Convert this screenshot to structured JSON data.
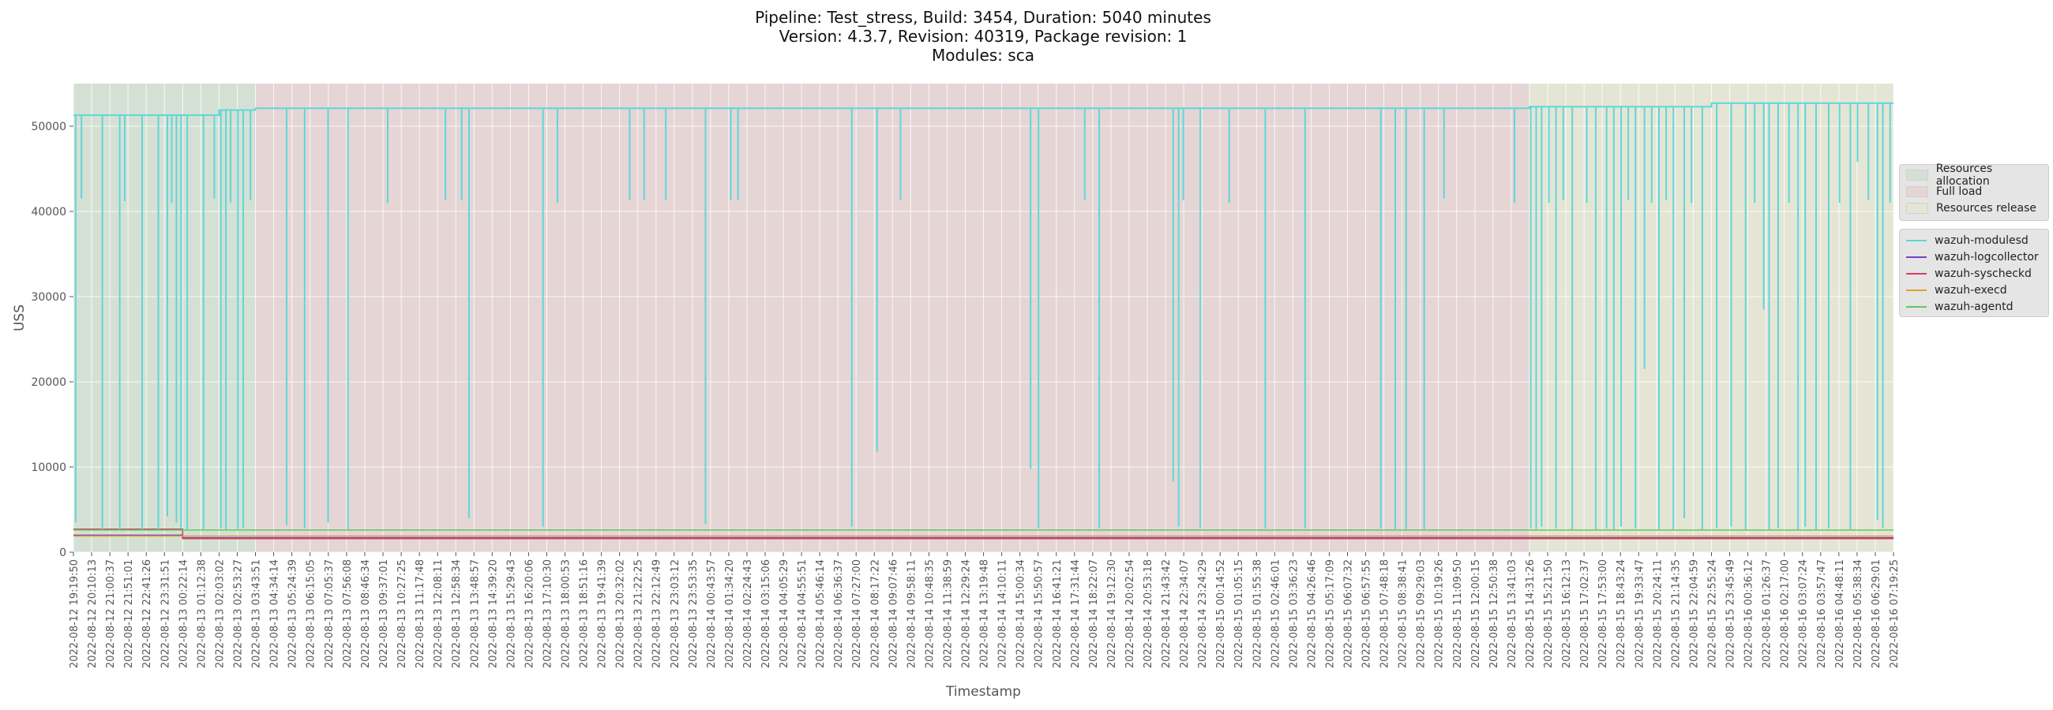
{
  "chart_data": {
    "type": "line",
    "title": [
      "Pipeline: Test_stress, Build: 3454, Duration: 5040 minutes",
      "Version: 4.3.7, Revision: 40319, Package revision: 1",
      "Modules: sca"
    ],
    "xlabel": "Timestamp",
    "ylabel": "USS",
    "ylim": [
      0,
      55000
    ],
    "yticks": [
      0,
      10000,
      20000,
      30000,
      40000,
      50000
    ],
    "grid": true,
    "legend_placement": "right, outside plot",
    "x_ticks": [
      "2022-08-12 19:19:50",
      "2022-08-12 20:10:13",
      "2022-08-12 21:00:37",
      "2022-08-12 21:51:01",
      "2022-08-12 22:41:26",
      "2022-08-12 23:31:51",
      "2022-08-13 00:22:14",
      "2022-08-13 01:12:38",
      "2022-08-13 02:03:02",
      "2022-08-13 02:53:27",
      "2022-08-13 03:43:51",
      "2022-08-13 04:34:14",
      "2022-08-13 05:24:39",
      "2022-08-13 06:15:05",
      "2022-08-13 07:05:37",
      "2022-08-13 07:56:08",
      "2022-08-13 08:46:34",
      "2022-08-13 09:37:01",
      "2022-08-13 10:27:25",
      "2022-08-13 11:17:48",
      "2022-08-13 12:08:11",
      "2022-08-13 12:58:34",
      "2022-08-13 13:48:57",
      "2022-08-13 14:39:20",
      "2022-08-13 15:29:43",
      "2022-08-13 16:20:06",
      "2022-08-13 17:10:30",
      "2022-08-13 18:00:53",
      "2022-08-13 18:51:16",
      "2022-08-13 19:41:39",
      "2022-08-13 20:32:02",
      "2022-08-13 21:22:25",
      "2022-08-13 22:12:49",
      "2022-08-13 23:03:12",
      "2022-08-13 23:53:35",
      "2022-08-14 00:43:57",
      "2022-08-14 01:34:20",
      "2022-08-14 02:24:43",
      "2022-08-14 03:15:06",
      "2022-08-14 04:05:29",
      "2022-08-14 04:55:51",
      "2022-08-14 05:46:14",
      "2022-08-14 06:36:37",
      "2022-08-14 07:27:00",
      "2022-08-14 08:17:22",
      "2022-08-14 09:07:46",
      "2022-08-14 09:58:11",
      "2022-08-14 10:48:35",
      "2022-08-14 11:38:59",
      "2022-08-14 12:29:24",
      "2022-08-14 13:19:48",
      "2022-08-14 14:10:11",
      "2022-08-14 15:00:34",
      "2022-08-14 15:50:57",
      "2022-08-14 16:41:21",
      "2022-08-14 17:31:44",
      "2022-08-14 18:22:07",
      "2022-08-14 19:12:30",
      "2022-08-14 20:02:54",
      "2022-08-14 20:53:18",
      "2022-08-14 21:43:42",
      "2022-08-14 22:34:07",
      "2022-08-14 23:24:29",
      "2022-08-15 00:14:52",
      "2022-08-15 01:05:15",
      "2022-08-15 01:55:38",
      "2022-08-15 02:46:01",
      "2022-08-15 03:36:23",
      "2022-08-15 04:26:46",
      "2022-08-15 05:17:09",
      "2022-08-15 06:07:32",
      "2022-08-15 06:57:55",
      "2022-08-15 07:48:18",
      "2022-08-15 08:38:41",
      "2022-08-15 09:29:03",
      "2022-08-15 10:19:26",
      "2022-08-15 11:09:50",
      "2022-08-15 12:00:15",
      "2022-08-15 12:50:38",
      "2022-08-15 13:41:03",
      "2022-08-15 14:31:26",
      "2022-08-15 15:21:50",
      "2022-08-15 16:12:13",
      "2022-08-15 17:02:37",
      "2022-08-15 17:53:00",
      "2022-08-15 18:43:24",
      "2022-08-15 19:33:47",
      "2022-08-15 20:24:11",
      "2022-08-15 21:14:35",
      "2022-08-15 22:04:59",
      "2022-08-15 22:55:24",
      "2022-08-15 23:45:49",
      "2022-08-16 00:36:12",
      "2022-08-16 01:26:37",
      "2022-08-16 02:17:00",
      "2022-08-16 03:07:24",
      "2022-08-16 03:57:47",
      "2022-08-16 04:48:11",
      "2022-08-16 05:38:34",
      "2022-08-16 06:29:01",
      "2022-08-16 07:19:25"
    ],
    "phases": [
      {
        "name": "Resources allocation",
        "start": "2022-08-12 19:19:50",
        "end": "2022-08-13 03:43:51",
        "color": "#d5e0d5"
      },
      {
        "name": "Full load",
        "start": "2022-08-13 03:43:51",
        "end": "2022-08-15 14:31:26",
        "color": "#e5d5d5"
      },
      {
        "name": "Resources release",
        "start": "2022-08-15 14:31:26",
        "end": "2022-08-16 07:19:25",
        "color": "#e5e5d5"
      }
    ],
    "series": [
      {
        "name": "wazuh-modulesd",
        "color": "#5fd7d7",
        "segments": [
          {
            "start": "2022-08-12 19:19:50",
            "end": "2022-08-13 02:03:02",
            "value": 51300
          },
          {
            "start": "2022-08-13 02:03:02",
            "end": "2022-08-13 03:43:51",
            "value": 51900
          },
          {
            "start": "2022-08-13 03:43:51",
            "end": "2022-08-15 14:31:26",
            "value": 52100
          },
          {
            "start": "2022-08-15 14:31:26",
            "end": "2022-08-15 22:55:24",
            "value": 52300
          },
          {
            "start": "2022-08-15 22:55:24",
            "end": "2022-08-16 07:19:25",
            "value": 52700
          }
        ],
        "dips": [
          {
            "x": "2022-08-12 19:26:00",
            "value": 3500
          },
          {
            "x": "2022-08-12 19:42:00",
            "value": 41500
          },
          {
            "x": "2022-08-12 20:40:00",
            "value": 2700
          },
          {
            "x": "2022-08-12 21:28:00",
            "value": 2700
          },
          {
            "x": "2022-08-12 21:42:00",
            "value": 41200
          },
          {
            "x": "2022-08-12 22:30:00",
            "value": 2700
          },
          {
            "x": "2022-08-12 23:15:00",
            "value": 2700
          },
          {
            "x": "2022-08-12 23:40:00",
            "value": 4200
          },
          {
            "x": "2022-08-12 23:52:00",
            "value": 41000
          },
          {
            "x": "2022-08-13 00:05:00",
            "value": 3500
          },
          {
            "x": "2022-08-13 00:18:00",
            "value": 2800
          },
          {
            "x": "2022-08-13 00:35:00",
            "value": 2600
          },
          {
            "x": "2022-08-13 01:20:00",
            "value": 2700
          },
          {
            "x": "2022-08-13 01:50:00",
            "value": 41500
          },
          {
            "x": "2022-08-13 02:08:00",
            "value": 2800
          },
          {
            "x": "2022-08-13 02:22:00",
            "value": 2700
          },
          {
            "x": "2022-08-13 02:35:00",
            "value": 41000
          },
          {
            "x": "2022-08-13 02:55:00",
            "value": 2700
          },
          {
            "x": "2022-08-13 03:10:00",
            "value": 2800
          },
          {
            "x": "2022-08-13 03:30:00",
            "value": 41300
          },
          {
            "x": "2022-08-13 05:10:00",
            "value": 3200
          },
          {
            "x": "2022-08-13 06:00:00",
            "value": 2800
          },
          {
            "x": "2022-08-13 07:05:00",
            "value": 3500
          },
          {
            "x": "2022-08-13 08:00:00",
            "value": 2700
          },
          {
            "x": "2022-08-13 09:50:00",
            "value": 41000
          },
          {
            "x": "2022-08-13 12:30:00",
            "value": 41300
          },
          {
            "x": "2022-08-13 13:15:00",
            "value": 41300
          },
          {
            "x": "2022-08-13 13:35:00",
            "value": 4000
          },
          {
            "x": "2022-08-13 17:00:00",
            "value": 3000
          },
          {
            "x": "2022-08-13 17:40:00",
            "value": 41000
          },
          {
            "x": "2022-08-13 21:00:00",
            "value": 41300
          },
          {
            "x": "2022-08-13 21:40:00",
            "value": 41300
          },
          {
            "x": "2022-08-13 22:40:00",
            "value": 41300
          },
          {
            "x": "2022-08-14 00:30:00",
            "value": 3300
          },
          {
            "x": "2022-08-14 01:40:00",
            "value": 41300
          },
          {
            "x": "2022-08-14 02:00:00",
            "value": 41300
          },
          {
            "x": "2022-08-14 07:15:00",
            "value": 3000
          },
          {
            "x": "2022-08-14 08:25:00",
            "value": 11800
          },
          {
            "x": "2022-08-14 09:30:00",
            "value": 41300
          },
          {
            "x": "2022-08-14 15:30:00",
            "value": 9800
          },
          {
            "x": "2022-08-14 15:52:00",
            "value": 2800
          },
          {
            "x": "2022-08-14 18:00:00",
            "value": 41300
          },
          {
            "x": "2022-08-14 18:40:00",
            "value": 2800
          },
          {
            "x": "2022-08-14 22:05:00",
            "value": 8300
          },
          {
            "x": "2022-08-14 22:20:00",
            "value": 3000
          },
          {
            "x": "2022-08-14 22:33:00",
            "value": 41300
          },
          {
            "x": "2022-08-14 23:20:00",
            "value": 2800
          },
          {
            "x": "2022-08-15 00:40:00",
            "value": 41000
          },
          {
            "x": "2022-08-15 02:20:00",
            "value": 2800
          },
          {
            "x": "2022-08-15 04:10:00",
            "value": 2800
          },
          {
            "x": "2022-08-15 07:40:00",
            "value": 2800
          },
          {
            "x": "2022-08-15 08:20:00",
            "value": 2700
          },
          {
            "x": "2022-08-15 08:50:00",
            "value": 2700
          },
          {
            "x": "2022-08-15 09:40:00",
            "value": 2700
          },
          {
            "x": "2022-08-15 10:35:00",
            "value": 41500
          },
          {
            "x": "2022-08-15 13:50:00",
            "value": 41000
          },
          {
            "x": "2022-08-15 14:35:00",
            "value": 2800
          },
          {
            "x": "2022-08-15 14:50:00",
            "value": 2700
          },
          {
            "x": "2022-08-15 15:05:00",
            "value": 3000
          },
          {
            "x": "2022-08-15 15:25:00",
            "value": 41000
          },
          {
            "x": "2022-08-15 15:45:00",
            "value": 2800
          },
          {
            "x": "2022-08-15 16:05:00",
            "value": 41300
          },
          {
            "x": "2022-08-15 16:30:00",
            "value": 2700
          },
          {
            "x": "2022-08-15 17:10:00",
            "value": 41000
          },
          {
            "x": "2022-08-15 17:35:00",
            "value": 2700
          },
          {
            "x": "2022-08-15 18:05:00",
            "value": 2800
          },
          {
            "x": "2022-08-15 18:25:00",
            "value": 2700
          },
          {
            "x": "2022-08-15 18:45:00",
            "value": 3000
          },
          {
            "x": "2022-08-15 19:05:00",
            "value": 41300
          },
          {
            "x": "2022-08-15 19:25:00",
            "value": 2800
          },
          {
            "x": "2022-08-15 19:50:00",
            "value": 21500
          },
          {
            "x": "2022-08-15 20:10:00",
            "value": 41000
          },
          {
            "x": "2022-08-15 20:30:00",
            "value": 2700
          },
          {
            "x": "2022-08-15 20:50:00",
            "value": 41300
          },
          {
            "x": "2022-08-15 21:10:00",
            "value": 2700
          },
          {
            "x": "2022-08-15 21:40:00",
            "value": 4000
          },
          {
            "x": "2022-08-15 22:00:00",
            "value": 41000
          },
          {
            "x": "2022-08-15 22:30:00",
            "value": 2700
          },
          {
            "x": "2022-08-15 23:10:00",
            "value": 2800
          },
          {
            "x": "2022-08-15 23:50:00",
            "value": 3000
          },
          {
            "x": "2022-08-16 00:30:00",
            "value": 2700
          },
          {
            "x": "2022-08-16 00:55:00",
            "value": 41000
          },
          {
            "x": "2022-08-16 01:20:00",
            "value": 28500
          },
          {
            "x": "2022-08-16 01:35:00",
            "value": 2700
          },
          {
            "x": "2022-08-16 02:00:00",
            "value": 2800
          },
          {
            "x": "2022-08-16 02:30:00",
            "value": 41000
          },
          {
            "x": "2022-08-16 02:55:00",
            "value": 2700
          },
          {
            "x": "2022-08-16 03:15:00",
            "value": 3000
          },
          {
            "x": "2022-08-16 03:45:00",
            "value": 2700
          },
          {
            "x": "2022-08-16 04:20:00",
            "value": 2800
          },
          {
            "x": "2022-08-16 04:50:00",
            "value": 41000
          },
          {
            "x": "2022-08-16 05:20:00",
            "value": 2700
          },
          {
            "x": "2022-08-16 05:40:00",
            "value": 45800
          },
          {
            "x": "2022-08-16 06:10:00",
            "value": 41300
          },
          {
            "x": "2022-08-16 06:35:00",
            "value": 3800
          },
          {
            "x": "2022-08-16 06:50:00",
            "value": 2800
          },
          {
            "x": "2022-08-16 07:10:00",
            "value": 41000
          }
        ]
      },
      {
        "name": "wazuh-logcollector",
        "color": "#7b3fbf",
        "segments": [
          {
            "start": "2022-08-12 19:19:50",
            "end": "2022-08-13 00:22:14",
            "value": 2000
          },
          {
            "start": "2022-08-13 00:22:14",
            "end": "2022-08-16 07:19:25",
            "value": 1700
          }
        ]
      },
      {
        "name": "wazuh-syscheckd",
        "color": "#d04060",
        "segments": [
          {
            "start": "2022-08-12 19:19:50",
            "end": "2022-08-13 00:22:14",
            "value": 2700
          },
          {
            "start": "2022-08-13 00:22:14",
            "end": "2022-08-16 07:19:25",
            "value": 1600
          }
        ]
      },
      {
        "name": "wazuh-execd",
        "color": "#e0a030",
        "segments": [
          {
            "start": "2022-08-12 19:19:50",
            "end": "2022-08-16 07:19:25",
            "value": 1900
          }
        ]
      },
      {
        "name": "wazuh-agentd",
        "color": "#60c860",
        "segments": [
          {
            "start": "2022-08-12 19:19:50",
            "end": "2022-08-16 07:19:25",
            "value": 2600
          }
        ]
      }
    ]
  }
}
